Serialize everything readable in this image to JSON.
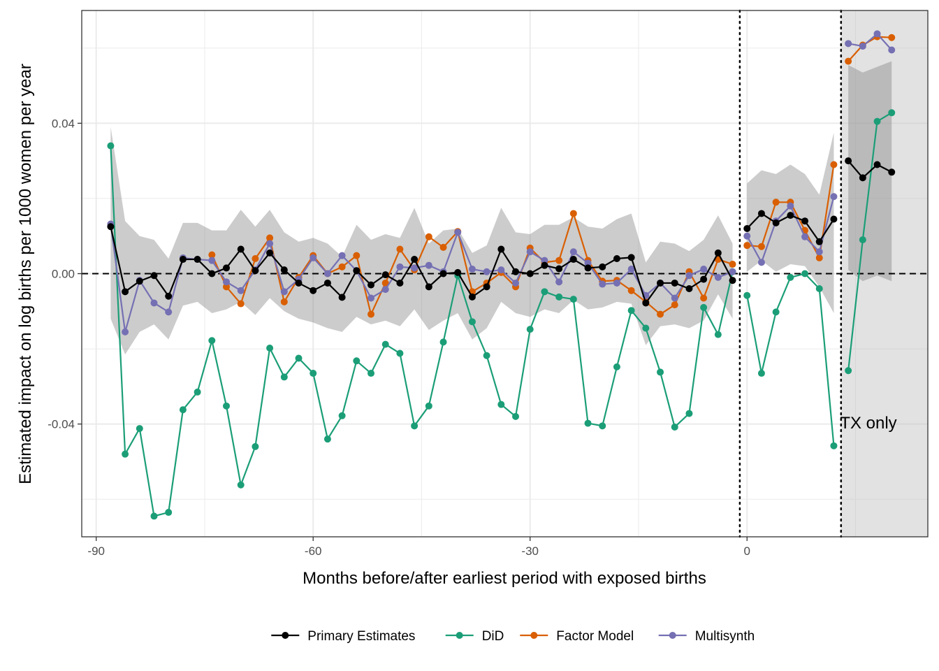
{
  "chart_data": {
    "type": "line",
    "xlabel": "Months before/after earliest period with exposed births",
    "ylabel": "Estimated impact on log births per 1000 women per year",
    "xlim": [
      -92,
      25
    ],
    "ylim": [
      -0.07,
      0.07
    ],
    "x_ticks": [
      -90,
      -60,
      -30,
      0
    ],
    "x_tick_labels": [
      "-90",
      "-60",
      "-30",
      "0"
    ],
    "y_ticks": [
      -0.04,
      0.0,
      0.04
    ],
    "y_tick_labels": [
      "-0.04",
      "0.00",
      "0.04"
    ],
    "grid": true,
    "legend_position": "bottom",
    "reference_line_y": 0,
    "vlines_dotted": [
      -1,
      13
    ],
    "shaded_region": {
      "x_from": 13,
      "x_to": 25,
      "label": "TX only"
    },
    "series": [
      {
        "name": "Primary Estimates",
        "color": "#000000",
        "x": [
          -88,
          -86,
          -84,
          -82,
          -80,
          -78,
          -76,
          -74,
          -72,
          -70,
          -68,
          -66,
          -64,
          -62,
          -60,
          -58,
          -56,
          -54,
          -52,
          -50,
          -48,
          -46,
          -44,
          -42,
          -40,
          -38,
          -36,
          -34,
          -32,
          -30,
          -28,
          -26,
          -24,
          -22,
          -20,
          -18,
          -16,
          -14,
          -12,
          -10,
          -8,
          -6,
          -4,
          -2
        ],
        "values": [
          0.0125,
          -0.0048,
          -0.002,
          -0.0005,
          -0.006,
          0.0038,
          0.0038,
          0.0,
          0.0015,
          0.0065,
          0.0008,
          0.0055,
          0.001,
          -0.0025,
          -0.0045,
          -0.0025,
          -0.0063,
          0.0008,
          -0.003,
          -0.0003,
          -0.0025,
          0.0038,
          -0.0035,
          0.0,
          0.0003,
          -0.0062,
          -0.0035,
          0.0065,
          0.0005,
          0.0,
          0.0022,
          0.0013,
          0.0038,
          0.0015,
          0.0018,
          0.004,
          0.0043,
          -0.0078,
          -0.0025,
          -0.0025,
          -0.004,
          -0.0015,
          0.0055,
          -0.0018
        ],
        "x2": [
          0,
          2,
          4,
          6,
          8,
          10,
          12
        ],
        "values2": [
          0.012,
          0.016,
          0.0135,
          0.0155,
          0.014,
          0.0085,
          0.0145
        ],
        "x3": [
          14,
          16,
          18,
          20
        ],
        "values3": [
          0.03,
          0.0255,
          0.029,
          0.027
        ]
      },
      {
        "name": "DiD",
        "color": "#1b9e77",
        "x": [
          -88,
          -86,
          -84,
          -82,
          -80,
          -78,
          -76,
          -74,
          -72,
          -70,
          -68,
          -66,
          -64,
          -62,
          -60,
          -58,
          -56,
          -54,
          -52,
          -50,
          -48,
          -46,
          -44,
          -42,
          -40,
          -38,
          -36,
          -34,
          -32,
          -30,
          -28,
          -26,
          -24,
          -22,
          -20,
          -18,
          -16,
          -14,
          -12,
          -10,
          -8,
          -6,
          -4,
          -2
        ],
        "values": [
          0.034,
          -0.048,
          -0.0412,
          -0.0645,
          -0.0635,
          -0.0362,
          -0.0315,
          -0.0178,
          -0.0352,
          -0.0562,
          -0.046,
          -0.0198,
          -0.0275,
          -0.0225,
          -0.0265,
          -0.044,
          -0.0378,
          -0.0232,
          -0.0265,
          -0.0188,
          -0.0212,
          -0.0405,
          -0.0352,
          -0.0182,
          -0.0005,
          -0.0128,
          -0.0218,
          -0.0348,
          -0.038,
          -0.0148,
          -0.0048,
          -0.0062,
          -0.0068,
          -0.0398,
          -0.0405,
          -0.0248,
          -0.0098,
          -0.0145,
          -0.0262,
          -0.0408,
          -0.0372,
          -0.009,
          -0.0162,
          0.0005
        ],
        "x2": [
          0,
          2,
          4,
          6,
          8,
          10,
          12
        ],
        "values2": [
          -0.0058,
          -0.0265,
          -0.0102,
          -0.001,
          0.0,
          -0.004,
          -0.0458
        ],
        "x3": [
          14,
          16,
          18,
          20
        ],
        "values3": [
          -0.0258,
          0.009,
          0.0405,
          0.0428
        ]
      },
      {
        "name": "Factor Model",
        "color": "#d95f02",
        "x": [
          -74,
          -72,
          -70,
          -68,
          -66,
          -64,
          -62,
          -60,
          -58,
          -56,
          -54,
          -52,
          -50,
          -48,
          -46,
          -44,
          -42,
          -40,
          -38,
          -36,
          -34,
          -32,
          -30,
          -28,
          -26,
          -24,
          -22,
          -20,
          -18,
          -16,
          -14,
          -12,
          -10,
          -8,
          -6,
          -4,
          -2
        ],
        "values": [
          0.005,
          -0.0035,
          -0.008,
          0.004,
          0.0095,
          -0.0075,
          -0.001,
          0.0048,
          0.0,
          0.0018,
          0.0048,
          -0.0108,
          -0.0025,
          0.0065,
          0.001,
          0.0098,
          0.007,
          0.0112,
          -0.0048,
          -0.0025,
          0.0003,
          -0.0035,
          0.0068,
          0.003,
          0.0035,
          0.016,
          0.0035,
          -0.002,
          -0.0018,
          -0.0045,
          -0.0075,
          -0.0108,
          -0.0083,
          0.0005,
          -0.0065,
          0.0038,
          0.0025
        ],
        "x2": [
          0,
          2,
          4,
          6,
          8,
          10,
          12
        ],
        "values2": [
          0.0075,
          0.0072,
          0.019,
          0.019,
          0.0115,
          0.0042,
          0.029
        ],
        "x3": [
          14,
          16,
          18,
          20
        ],
        "values3": [
          0.0565,
          0.0608,
          0.063,
          0.0628
        ]
      },
      {
        "name": "Multisynth",
        "color": "#7570b3",
        "x": [
          -88,
          -86,
          -84,
          -82,
          -80,
          -78,
          -76,
          -74,
          -72,
          -70,
          -68,
          -66,
          -64,
          -62,
          -60,
          -58,
          -56,
          -54,
          -52,
          -50,
          -48,
          -46,
          -44,
          -42,
          -40,
          -38,
          -36,
          -34,
          -32,
          -30,
          -28,
          -26,
          -24,
          -22,
          -20,
          -18,
          -16,
          -14,
          -12,
          -10,
          -8,
          -6,
          -4,
          -2
        ],
        "values": [
          0.0132,
          -0.0155,
          -0.0018,
          -0.0078,
          -0.0102,
          0.0042,
          0.0038,
          0.0035,
          -0.0022,
          -0.0045,
          0.001,
          0.008,
          -0.0048,
          -0.0015,
          0.0042,
          0.0,
          0.0048,
          0.0008,
          -0.0065,
          -0.0042,
          0.0018,
          0.0015,
          0.0022,
          0.0005,
          0.011,
          0.0012,
          0.0005,
          0.001,
          -0.0025,
          0.0058,
          0.0035,
          -0.0022,
          0.0058,
          0.0028,
          -0.0028,
          -0.0025,
          0.0012,
          -0.0058,
          -0.0025,
          -0.0065,
          -0.0005,
          0.0012,
          -0.001,
          0.0005
        ],
        "x2": [
          0,
          2,
          4,
          6,
          8,
          10,
          12
        ],
        "values2": [
          0.01,
          0.003,
          0.014,
          0.018,
          0.0098,
          0.0058,
          0.0205
        ],
        "x3": [
          14,
          16,
          18,
          20
        ],
        "values3": [
          0.0612,
          0.0605,
          0.0638,
          0.0595
        ]
      }
    ],
    "confidence_band": {
      "x": [
        -88,
        -86,
        -84,
        -82,
        -80,
        -78,
        -76,
        -74,
        -72,
        -70,
        -68,
        -66,
        -64,
        -62,
        -60,
        -58,
        -56,
        -54,
        -52,
        -50,
        -48,
        -46,
        -44,
        -42,
        -40,
        -38,
        -36,
        -34,
        -32,
        -30,
        -28,
        -26,
        -24,
        -22,
        -20,
        -18,
        -16,
        -14,
        -12,
        -10,
        -8,
        -6,
        -4,
        -2
      ],
      "lower": [
        -0.012,
        -0.0215,
        -0.0155,
        -0.0135,
        -0.0175,
        -0.0085,
        -0.0075,
        -0.0105,
        -0.0095,
        -0.0075,
        -0.011,
        -0.0065,
        -0.01,
        -0.012,
        -0.013,
        -0.0145,
        -0.0155,
        -0.0115,
        -0.0135,
        -0.0125,
        -0.014,
        -0.0095,
        -0.015,
        -0.0125,
        -0.0105,
        -0.0175,
        -0.0145,
        -0.0075,
        -0.0105,
        -0.0115,
        -0.0095,
        -0.0105,
        -0.007,
        -0.0095,
        -0.009,
        -0.0075,
        -0.008,
        -0.019,
        -0.014,
        -0.0135,
        -0.0145,
        -0.0125,
        -0.0055,
        -0.012
      ],
      "upper": [
        0.039,
        0.014,
        0.01,
        0.009,
        0.004,
        0.0135,
        0.0135,
        0.0115,
        0.0115,
        0.017,
        0.0125,
        0.017,
        0.011,
        0.0085,
        0.0095,
        0.008,
        0.0045,
        0.013,
        0.009,
        0.0105,
        0.0095,
        0.0175,
        0.008,
        0.0115,
        0.012,
        0.0055,
        0.0075,
        0.0175,
        0.011,
        0.0105,
        0.013,
        0.013,
        0.015,
        0.0125,
        0.012,
        0.0145,
        0.016,
        0.003,
        0.0085,
        0.008,
        0.006,
        0.009,
        0.0155,
        0.008
      ],
      "x2": [
        0,
        2,
        4,
        6,
        8,
        10,
        12
      ],
      "lower2": [
        0.0005,
        0.0035,
        0.0005,
        0.0025,
        0.002,
        -0.0035,
        -0.0105
      ],
      "upper2": [
        0.024,
        0.0275,
        0.0265,
        0.029,
        0.0265,
        0.021,
        0.0375
      ],
      "x3": [
        14,
        16,
        18,
        20
      ],
      "lower3": [
        0.001,
        -0.002,
        -0.0005,
        -0.002
      ],
      "upper3": [
        0.0555,
        0.0535,
        0.055,
        0.0565
      ]
    }
  }
}
